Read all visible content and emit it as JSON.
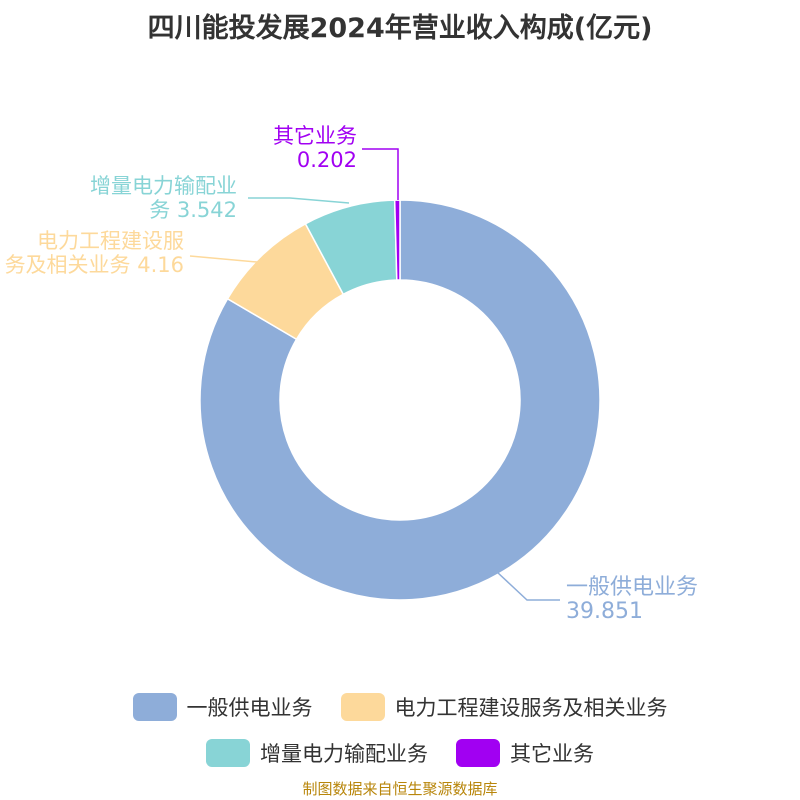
{
  "chart_data": {
    "type": "pie",
    "title": "四川能投发展2024年营业收入构成(亿元)",
    "slices": [
      {
        "name": "一般供电业务",
        "value": 39.851,
        "color": "#8eadd9",
        "label_lines": [
          "一般供电业务",
          "39.851"
        ]
      },
      {
        "name": "电力工程建设服务及相关业务",
        "value": 4.16,
        "color": "#fdd99b",
        "label_lines": [
          "电力工程建设服",
          "务及相关业务 4.16"
        ]
      },
      {
        "name": "增量电力输配业务",
        "value": 3.542,
        "color": "#88d4d6",
        "label_lines": [
          "增量电力输配业",
          "务 3.542"
        ]
      },
      {
        "name": "其它业务",
        "value": 0.202,
        "color": "#a100f2",
        "label_lines": [
          "其它业务",
          "0.202"
        ]
      }
    ],
    "legend_placement": "bottom"
  },
  "source_note": "制图数据来自恒生聚源数据库"
}
